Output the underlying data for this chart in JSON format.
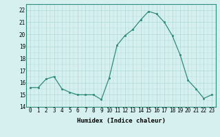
{
  "x": [
    0,
    1,
    2,
    3,
    4,
    5,
    6,
    7,
    8,
    9,
    10,
    11,
    12,
    13,
    14,
    15,
    16,
    17,
    18,
    19,
    20,
    21,
    22,
    23
  ],
  "y": [
    15.6,
    15.6,
    16.3,
    16.5,
    15.5,
    15.2,
    15.0,
    15.0,
    15.0,
    14.6,
    16.4,
    19.1,
    19.9,
    20.4,
    21.2,
    21.9,
    21.7,
    21.0,
    19.9,
    18.3,
    16.2,
    15.5,
    14.7,
    15.0
  ],
  "line_color": "#2e8b7a",
  "marker": "s",
  "marker_size": 1.8,
  "bg_color": "#d6f0f0",
  "grid_color": "#b0d8d8",
  "xlabel": "Humidex (Indice chaleur)",
  "xlim": [
    -0.5,
    23.5
  ],
  "ylim": [
    14,
    22.5
  ],
  "yticks": [
    14,
    15,
    16,
    17,
    18,
    19,
    20,
    21,
    22
  ],
  "xticks": [
    0,
    1,
    2,
    3,
    4,
    5,
    6,
    7,
    8,
    9,
    10,
    11,
    12,
    13,
    14,
    15,
    16,
    17,
    18,
    19,
    20,
    21,
    22,
    23
  ],
  "tick_fontsize": 5.5,
  "xlabel_fontsize": 6.5
}
